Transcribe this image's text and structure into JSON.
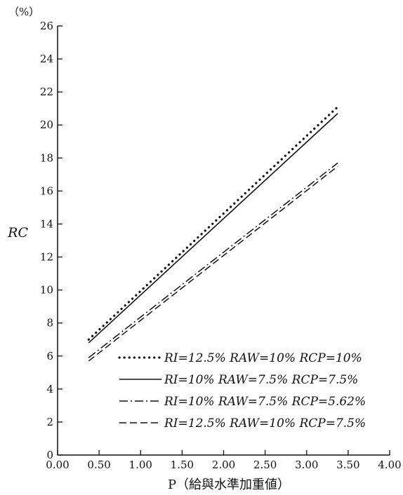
{
  "chart_data": {
    "type": "line",
    "title": "",
    "xlabel": "P（給與水準加重値）",
    "ylabel": "RC",
    "y_unit": "（%）",
    "xlim": [
      0,
      4
    ],
    "ylim": [
      0,
      26
    ],
    "x_ticks": [
      "0.00",
      "0.50",
      "1.00",
      "1.50",
      "2.00",
      "2.50",
      "3.00",
      "3.50",
      "4.00"
    ],
    "y_ticks": [
      "0",
      "2",
      "4",
      "6",
      "8",
      "10",
      "12",
      "14",
      "16",
      "18",
      "20",
      "22",
      "24",
      "26"
    ],
    "grid": false,
    "legend_position": "bottom-right",
    "series": [
      {
        "name": "RI=12.5% RAW=10% RCP=10%",
        "style": "dotted",
        "x": [
          0.375,
          3.375
        ],
        "y": [
          7.0,
          21.1
        ]
      },
      {
        "name": "RI=10% RAW=7.5% RCP=7.5%",
        "style": "solid",
        "x": [
          0.375,
          3.375
        ],
        "y": [
          6.8,
          20.7
        ]
      },
      {
        "name": "RI=10% RAW=7.5% RCP=5.62%",
        "style": "dash-dot",
        "x": [
          0.375,
          3.375
        ],
        "y": [
          5.9,
          17.7
        ]
      },
      {
        "name": "RI=12.5% RAW=10% RCP=7.5%",
        "style": "dashed",
        "x": [
          0.375,
          3.375
        ],
        "y": [
          5.7,
          17.5
        ]
      }
    ]
  }
}
